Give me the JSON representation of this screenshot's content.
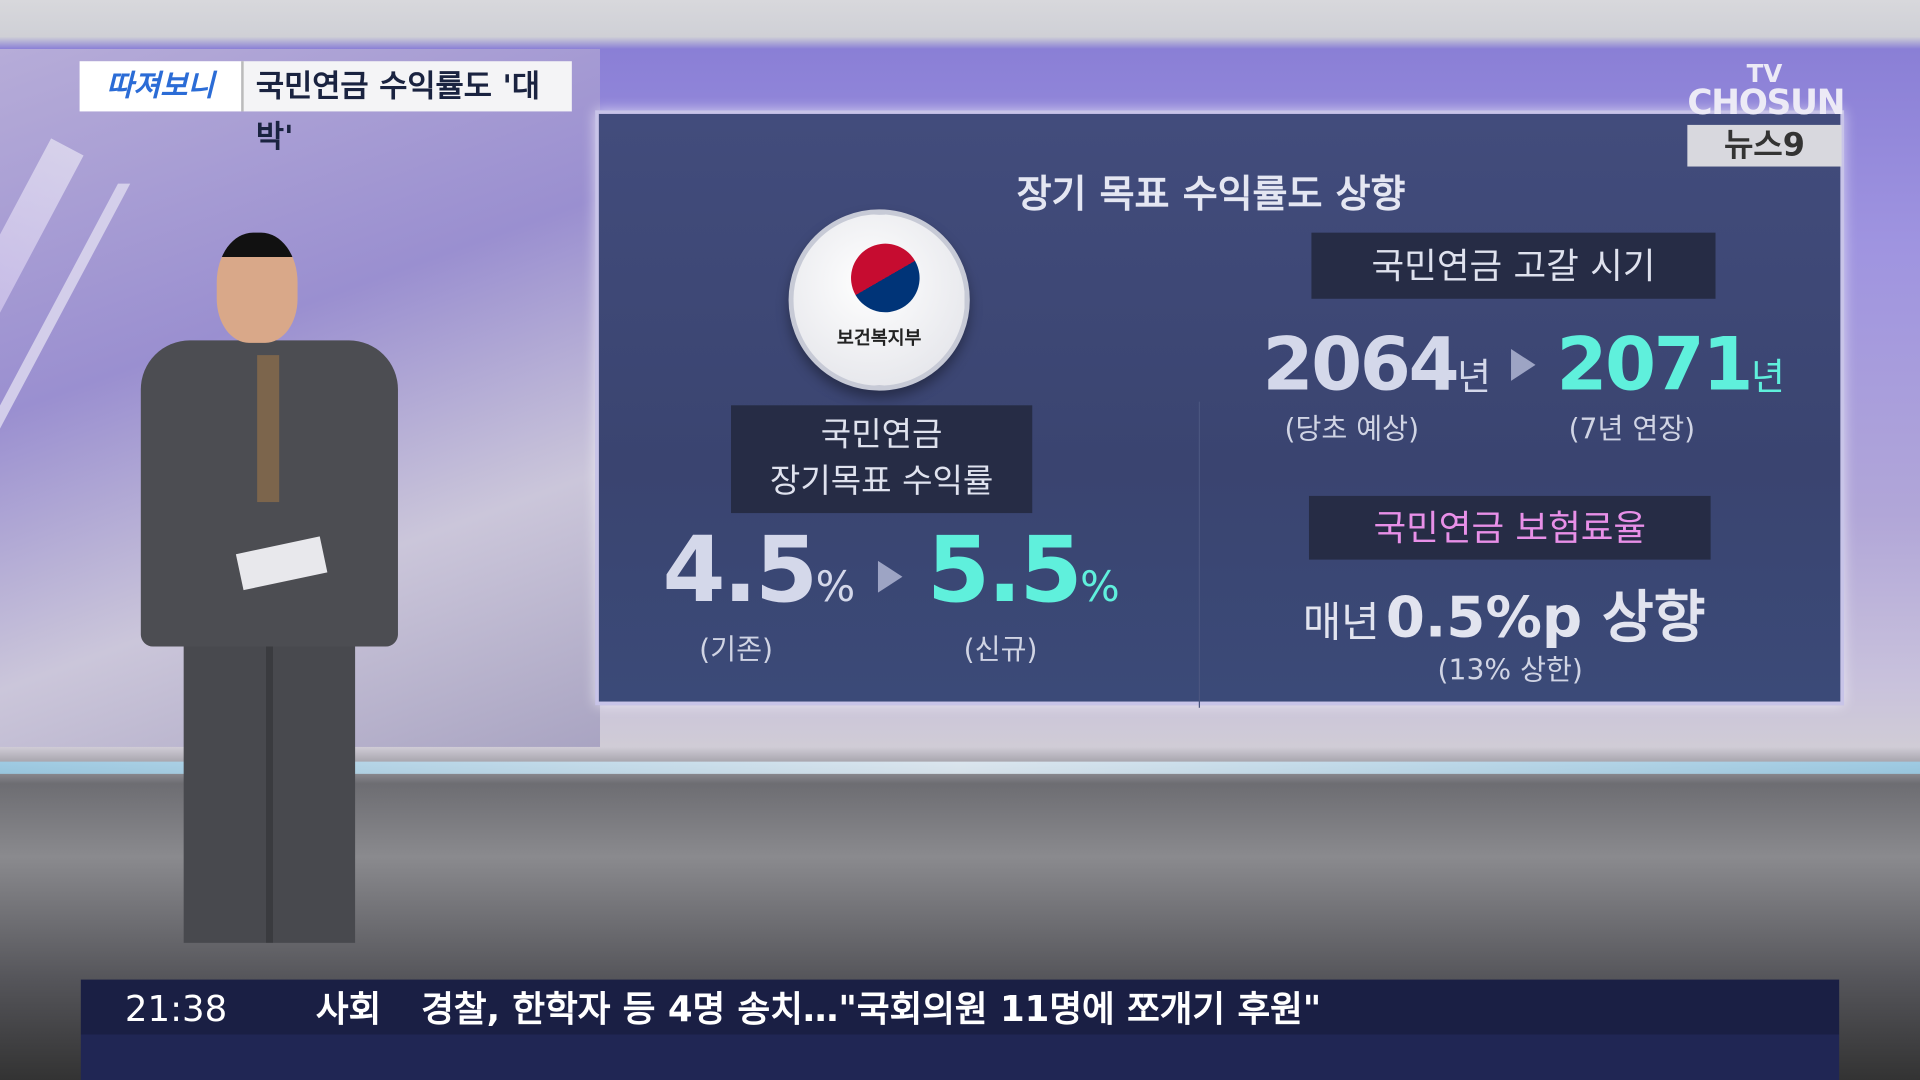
{
  "caption": {
    "segment_logo": "따져보니",
    "headline": "국민연금 수익률도 '대박'"
  },
  "brand": {
    "tv": "TV",
    "channel": "CHOSUN",
    "program": "뉴스9"
  },
  "panel": {
    "title": "장기 목표 수익률도 상향",
    "ministry_logo_text": "보건복지부",
    "return_box": {
      "line1": "국민연금",
      "line2": "장기목표 수익률"
    },
    "old_rate": {
      "value": "4.5",
      "unit": "%",
      "label": "(기존)"
    },
    "new_rate": {
      "value": "5.5",
      "unit": "%",
      "label": "(신규)"
    },
    "depletion_box": "국민연금 고갈 시기",
    "old_year": {
      "value": "2064",
      "unit": "년",
      "label": "(당초 예상)"
    },
    "new_year": {
      "value": "2071",
      "unit": "년",
      "label": "(7년 연장)"
    },
    "premium_box": "국민연금 보험료율",
    "premium": {
      "prefix": "매년",
      "value": "0.5%p 상향",
      "label": "(13% 상한)"
    }
  },
  "ticker": {
    "time": "21:38",
    "section": "사회",
    "headline": "경찰, 한학자 등 4명 송치…\"국회의원 11명에 쪼개기 후원\""
  },
  "colors": {
    "accent_cyan": "#5ff0dc",
    "accent_pink": "#e890e8",
    "panel_bg": "#3a4470"
  }
}
